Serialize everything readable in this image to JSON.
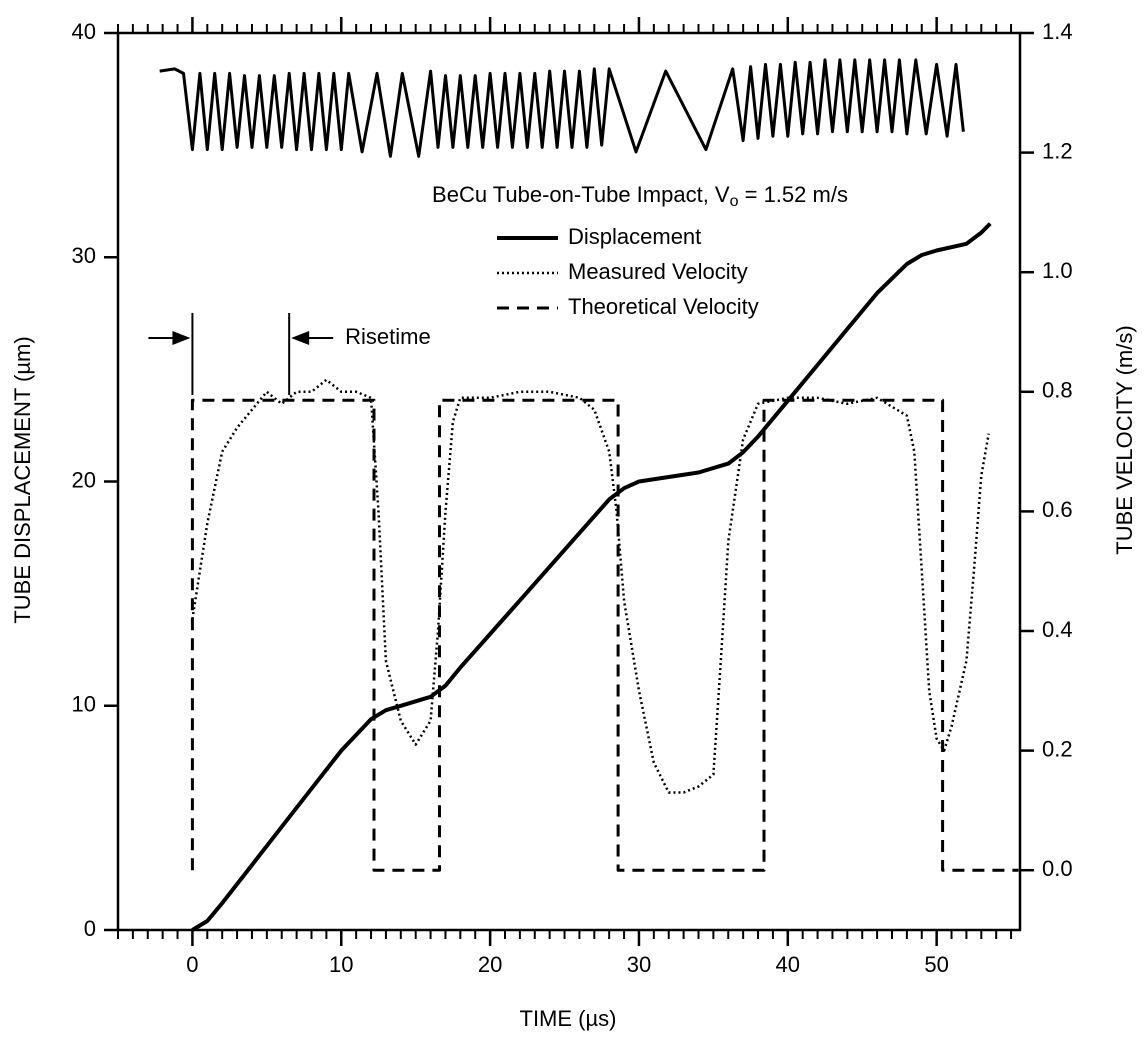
{
  "chart_data": {
    "type": "line",
    "title": "BeCu Tube-on-Tube Impact, V",
    "title_subscript": "o",
    "title_end": " = 1.52 m/s",
    "x_label": "TIME (µs)",
    "y_label": "TUBE  DISPLACEMENT  (µm)",
    "y2_label": "TUBE  VELOCITY  (m/s)",
    "xlim": [
      -5,
      55.6
    ],
    "xticks": [
      0,
      10,
      20,
      30,
      40,
      50
    ],
    "xminor_step": 1,
    "ylim": [
      0,
      40
    ],
    "yticks": [
      0,
      10,
      20,
      30,
      40
    ],
    "y2lim": [
      -0.1,
      1.4
    ],
    "y2ticks": [
      {
        "value": 0,
        "label": "0.0"
      },
      0.2,
      0.4,
      0.6,
      0.8,
      {
        "value": 1,
        "label": "1.0"
      },
      1.2,
      1.4
    ],
    "risetime": {
      "label": "Risetime",
      "x": [
        0,
        6.5
      ]
    },
    "series": [
      {
        "name": "Displacement",
        "color": "#000000",
        "style": "solid",
        "axis": "y",
        "x": [
          0,
          1,
          2,
          4,
          6,
          8,
          10,
          11,
          12,
          13,
          14,
          15,
          16,
          17,
          18,
          20,
          22,
          24,
          26,
          28,
          29,
          30,
          32,
          34,
          36,
          37,
          38,
          40,
          42,
          44,
          46,
          48,
          49,
          50,
          52,
          53,
          53.6
        ],
        "values": [
          0,
          0.4,
          1.2,
          2.9,
          4.6,
          6.3,
          8.0,
          8.7,
          9.4,
          9.8,
          10.0,
          10.2,
          10.4,
          10.9,
          11.7,
          13.2,
          14.7,
          16.2,
          17.7,
          19.2,
          19.7,
          20.0,
          20.2,
          20.4,
          20.8,
          21.3,
          22.0,
          23.6,
          25.2,
          26.8,
          28.4,
          29.7,
          30.1,
          30.3,
          30.6,
          31.1,
          31.5
        ]
      },
      {
        "name": "Measured Velocity",
        "color": "#000000",
        "style": "dotted",
        "axis": "y2",
        "x": [
          0,
          1,
          2,
          3,
          4,
          5,
          6,
          7,
          8,
          9,
          10,
          11,
          12,
          12.5,
          13,
          14,
          15,
          16,
          16.5,
          17,
          17.5,
          18,
          20,
          22,
          24,
          26,
          27,
          28,
          28.5,
          29,
          30,
          31,
          32,
          33,
          34,
          35,
          35.5,
          36,
          37,
          38,
          40,
          42,
          44,
          46,
          48,
          48.5,
          49,
          49.5,
          50,
          50.5,
          51,
          52,
          52.5,
          53,
          53.5
        ],
        "values": [
          0.42,
          0.58,
          0.7,
          0.74,
          0.77,
          0.8,
          0.78,
          0.8,
          0.8,
          0.82,
          0.8,
          0.8,
          0.79,
          0.6,
          0.35,
          0.25,
          0.21,
          0.25,
          0.4,
          0.6,
          0.75,
          0.79,
          0.79,
          0.8,
          0.8,
          0.79,
          0.77,
          0.7,
          0.6,
          0.45,
          0.3,
          0.18,
          0.13,
          0.13,
          0.14,
          0.16,
          0.35,
          0.55,
          0.72,
          0.78,
          0.79,
          0.79,
          0.78,
          0.79,
          0.76,
          0.7,
          0.5,
          0.3,
          0.22,
          0.2,
          0.24,
          0.35,
          0.5,
          0.66,
          0.73
        ]
      },
      {
        "name": "Theoretical Velocity",
        "color": "#000000",
        "style": "dashed",
        "axis": "y2",
        "x": [
          0,
          0,
          12.2,
          12.2,
          16.6,
          16.6,
          28.6,
          28.6,
          38.4,
          38.4,
          50.4,
          50.4,
          55.5
        ],
        "values": [
          0,
          0.786,
          0.786,
          0,
          0,
          0.786,
          0.786,
          0,
          0,
          0.786,
          0.786,
          0,
          0
        ]
      },
      {
        "color": "#000000",
        "style": "solid",
        "axis": "y",
        "x": [
          -2.2,
          -1.2,
          -0.6,
          0,
          0.5,
          1,
          1.5,
          2,
          2.5,
          3,
          3.5,
          4,
          4.5,
          5,
          5.5,
          6,
          6.5,
          7,
          7.5,
          8,
          8.5,
          9,
          9.5,
          10,
          10.5,
          11.4,
          12.4,
          13.3,
          14.1,
          15.2,
          16,
          16.5,
          17,
          17.5,
          18,
          18.5,
          19,
          19.5,
          20,
          20.5,
          21,
          21.5,
          22,
          22.5,
          23,
          23.5,
          24,
          24.5,
          25,
          25.5,
          26,
          26.5,
          27,
          27.5,
          28,
          29.8,
          31.8,
          34.5,
          36.3,
          37,
          37.5,
          38,
          38.5,
          39,
          39.5,
          40,
          40.5,
          41,
          41.5,
          42,
          42.5,
          43,
          43.5,
          44,
          44.5,
          45,
          45.5,
          46,
          46.5,
          47,
          47.5,
          48,
          48.6,
          49.3,
          50,
          50.7,
          51.3,
          51.8
        ],
        "values": [
          38.3,
          38.4,
          38.2,
          34.8,
          38.2,
          34.8,
          38.2,
          34.8,
          38.2,
          34.9,
          38.1,
          34.9,
          38.1,
          34.9,
          38.1,
          34.9,
          38.2,
          34.8,
          38.2,
          34.8,
          38.2,
          34.8,
          38.2,
          34.8,
          38.2,
          34.7,
          38.2,
          34.5,
          38.2,
          34.5,
          38.3,
          34.9,
          38.1,
          34.9,
          38.1,
          34.9,
          38.1,
          34.9,
          38.2,
          34.9,
          38.2,
          34.9,
          38.2,
          34.9,
          38.2,
          34.9,
          38.3,
          34.9,
          38.3,
          34.9,
          38.3,
          34.9,
          38.4,
          35.0,
          38.4,
          34.7,
          38.3,
          34.8,
          38.4,
          35.2,
          38.5,
          35.3,
          38.6,
          35.4,
          38.6,
          35.4,
          38.7,
          35.5,
          38.7,
          35.5,
          38.8,
          35.6,
          38.8,
          35.6,
          38.8,
          35.6,
          38.8,
          35.6,
          38.8,
          35.6,
          38.8,
          35.5,
          38.8,
          35.5,
          38.6,
          35.4,
          38.6,
          35.6
        ]
      }
    ]
  }
}
